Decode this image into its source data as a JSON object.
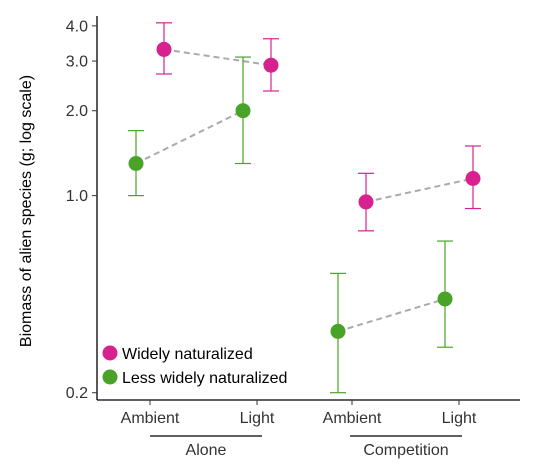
{
  "chart_data": {
    "type": "scatter",
    "ylabel": "Biomass of alien species (g; log scale)",
    "y_scale": "log",
    "ylim": [
      0.19,
      4.3
    ],
    "y_ticks": [
      {
        "value": 0.2,
        "label": "0.2"
      },
      {
        "value": 1.0,
        "label": "1.0"
      },
      {
        "value": 2.0,
        "label": "2.0"
      },
      {
        "value": 3.0,
        "label": "3.0"
      },
      {
        "value": 4.0,
        "label": "4.0"
      }
    ],
    "categories": [
      "Ambient",
      "Light",
      "Ambient",
      "Light"
    ],
    "groups": [
      {
        "label": "Alone",
        "categories": [
          0,
          1
        ]
      },
      {
        "label": "Competition",
        "categories": [
          2,
          3
        ]
      }
    ],
    "series": [
      {
        "name": "Widely naturalized",
        "color": "#d6218f",
        "values": [
          3.3,
          2.9,
          0.95,
          1.15
        ],
        "lower": [
          2.7,
          2.35,
          0.75,
          0.9
        ],
        "upper": [
          4.1,
          3.6,
          1.2,
          1.5
        ]
      },
      {
        "name": "Less widely naturalized",
        "color": "#4aa329",
        "values": [
          1.3,
          2.0,
          0.33,
          0.43
        ],
        "lower": [
          1.0,
          1.3,
          0.2,
          0.29
        ],
        "upper": [
          1.7,
          3.1,
          0.53,
          0.69
        ]
      }
    ],
    "connector_color": "#aaaaaa",
    "grid": false,
    "legend_position": "bottom-left"
  }
}
